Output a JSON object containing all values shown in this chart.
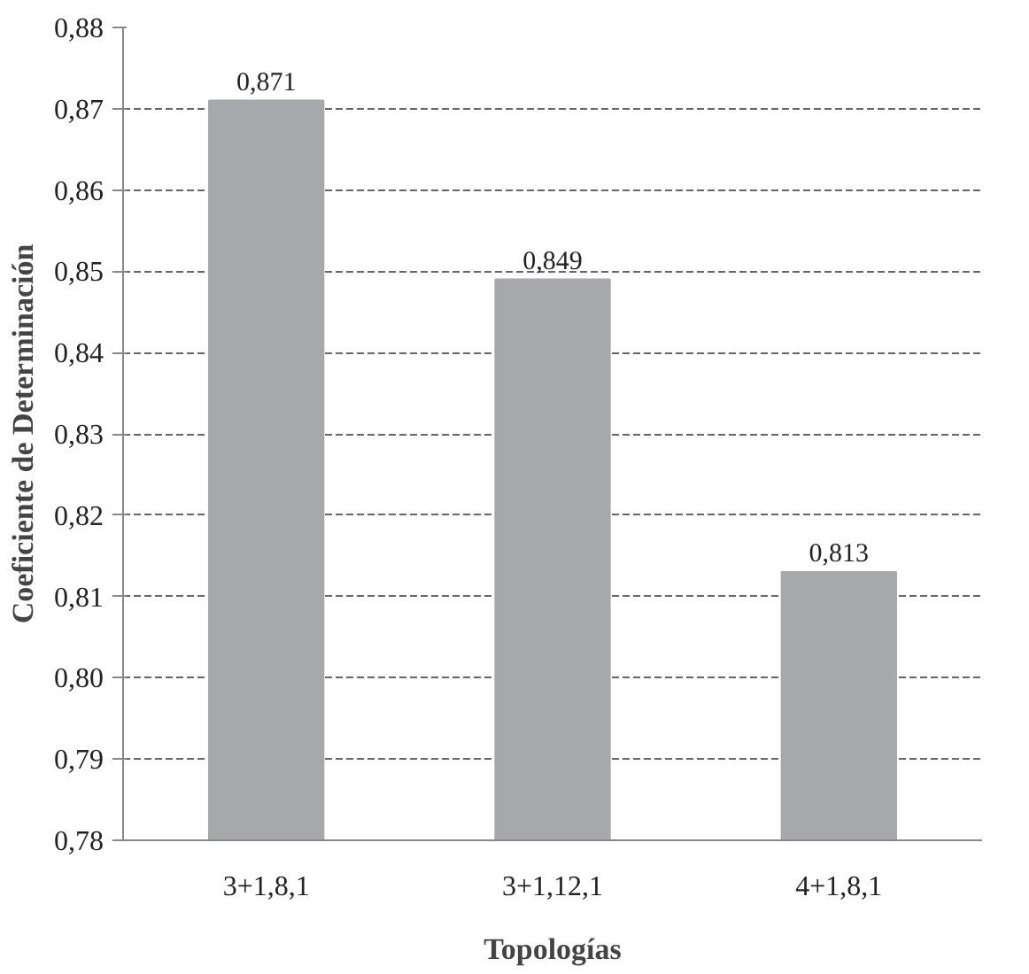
{
  "chart_data": {
    "type": "bar",
    "xlabel": "Topologías",
    "ylabel": "Coeficiente de Determinación",
    "categories": [
      "3+1,8,1",
      "3+1,12,1",
      "4+1,8,1"
    ],
    "values": [
      0.871,
      0.849,
      0.813
    ],
    "color": "#a6a8ab",
    "ylim": [
      0.78,
      0.88
    ],
    "yticks": [
      {
        "value": 0.78,
        "label": "0,78"
      },
      {
        "value": 0.79,
        "label": "0,79"
      },
      {
        "value": 0.8,
        "label": "0,80"
      },
      {
        "value": 0.81,
        "label": "0,81"
      },
      {
        "value": 0.82,
        "label": "0,82"
      },
      {
        "value": 0.83,
        "label": "0,83"
      },
      {
        "value": 0.84,
        "label": "0,84"
      },
      {
        "value": 0.85,
        "label": "0,85"
      },
      {
        "value": 0.86,
        "label": "0,86"
      },
      {
        "value": 0.87,
        "label": "0,87"
      },
      {
        "value": 0.88,
        "label": "0,88"
      }
    ],
    "value_labels": [
      "0,871",
      "0,849",
      "0,813"
    ],
    "grid": "y"
  }
}
